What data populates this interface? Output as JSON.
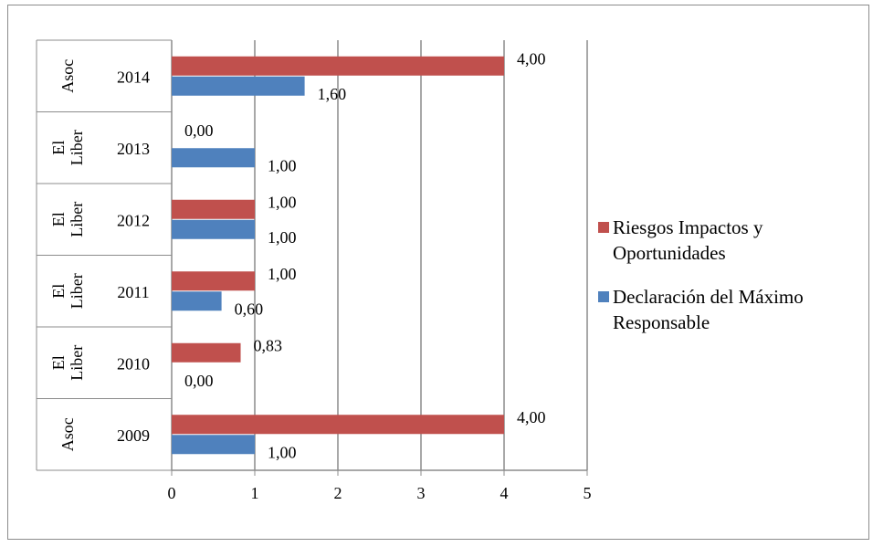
{
  "chart_data": {
    "type": "bar",
    "orientation": "horizontal",
    "title": "",
    "xlabel": "",
    "ylabel": "",
    "xlim": [
      0,
      5
    ],
    "x_ticks": [
      "0",
      "1",
      "2",
      "3",
      "4",
      "5"
    ],
    "grid": "vertical",
    "legend_position": "right",
    "categories": [
      {
        "group": "Asoc",
        "year": "2014"
      },
      {
        "group": "El Liber",
        "year": "2013"
      },
      {
        "group": "El Liber",
        "year": "2012"
      },
      {
        "group": "El Liber",
        "year": "2011"
      },
      {
        "group": "El Liber",
        "year": "2010"
      },
      {
        "group": "Asoc",
        "year": "2009"
      }
    ],
    "series": [
      {
        "name": "Riesgos Impactos y Oportunidades",
        "color": "#c0504d",
        "values": [
          4.0,
          0.0,
          1.0,
          1.0,
          0.83,
          4.0
        ],
        "labels": [
          "4,00",
          "0,00",
          "1,00",
          "1,00",
          "0,83",
          "4,00"
        ]
      },
      {
        "name": "Declaración del Máximo Responsable",
        "color": "#4f81bd",
        "values": [
          1.6,
          1.0,
          1.0,
          0.6,
          0.0,
          1.0
        ],
        "labels": [
          "1,60",
          "1,00",
          "1,00",
          "0,60",
          "0,00",
          "1,00"
        ]
      }
    ]
  }
}
